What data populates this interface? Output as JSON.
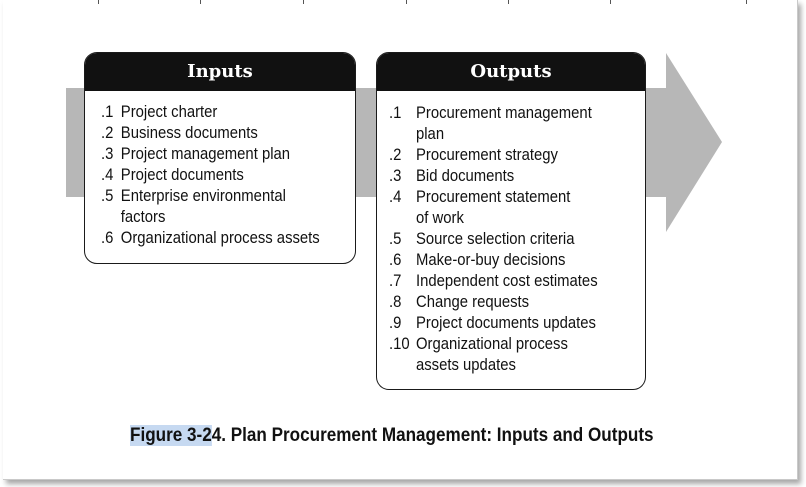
{
  "diagram": {
    "colors": {
      "arrow": "#b7b7b7",
      "header_background": "#111111",
      "header_text": "#ffffff",
      "selection_highlight": "#c6d9f1"
    },
    "inputs": {
      "title": "Inputs",
      "items": [
        {
          "num": ".1",
          "text": "Project charter"
        },
        {
          "num": ".2",
          "text": "Business documents"
        },
        {
          "num": ".3",
          "text": "Project management plan"
        },
        {
          "num": ".4",
          "text": "Project documents"
        },
        {
          "num": ".5",
          "text": "Enterprise environmental factors"
        },
        {
          "num": ".6",
          "text": "Organizational process assets"
        }
      ]
    },
    "outputs": {
      "title": "Outputs",
      "items": [
        {
          "num": ".1",
          "text": "Procurement management plan"
        },
        {
          "num": ".2",
          "text": "Procurement strategy"
        },
        {
          "num": ".3",
          "text": "Bid documents"
        },
        {
          "num": ".4",
          "text": "Procurement statement of work"
        },
        {
          "num": ".5",
          "text": "Source selection criteria"
        },
        {
          "num": ".6",
          "text": "Make-or-buy decisions"
        },
        {
          "num": ".7",
          "text": "Independent cost estimates"
        },
        {
          "num": ".8",
          "text": "Change requests"
        },
        {
          "num": ".9",
          "text": "Project documents updates"
        },
        {
          "num": ".10",
          "text": "Organizational process assets updates"
        }
      ]
    }
  },
  "caption": {
    "highlighted": "Figure 3-2",
    "rest": "4. Plan Procurement Management: Inputs and Outputs"
  }
}
